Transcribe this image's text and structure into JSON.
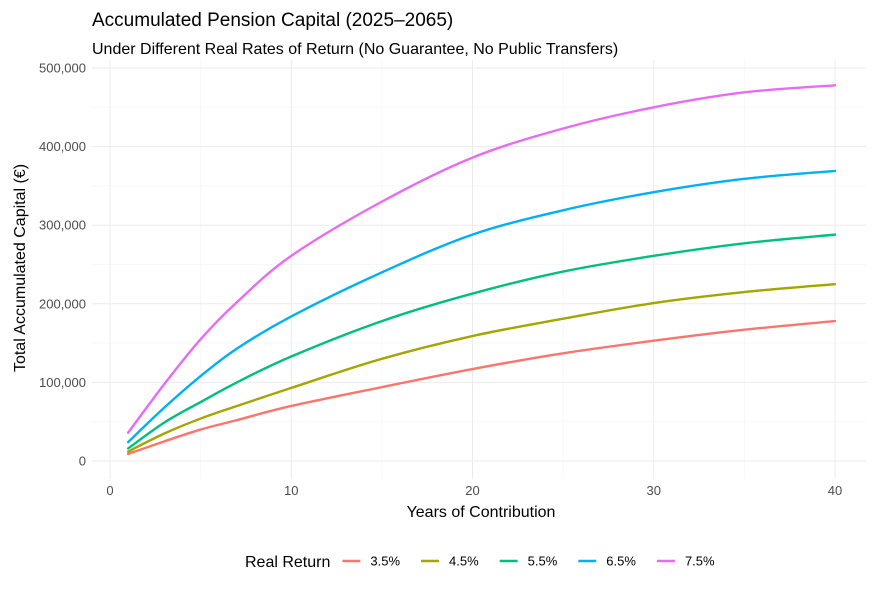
{
  "chart_data": {
    "type": "line",
    "title": "Accumulated Pension Capital (2025–2065)",
    "subtitle": "Under Different Real Rates of Return (No Guarantee, No Public Transfers)",
    "xlabel": "Years of Contribution",
    "ylabel": "Total Accumulated Capital (€)",
    "xlim": [
      0,
      40
    ],
    "ylim": [
      0,
      500000
    ],
    "x_ticks": [
      0,
      10,
      20,
      30,
      40
    ],
    "x_tick_labels": [
      "0",
      "10",
      "20",
      "30",
      "40"
    ],
    "y_ticks": [
      0,
      100000,
      200000,
      300000,
      400000,
      500000
    ],
    "y_tick_labels": [
      "0",
      "100,000",
      "200,000",
      "300,000",
      "400,000",
      "500,000"
    ],
    "grid": true,
    "legend_position": "bottom",
    "legend_title": "Real Return",
    "x": [
      1,
      3,
      5,
      7,
      10,
      15,
      20,
      25,
      30,
      35,
      40
    ],
    "series": [
      {
        "name": "3.5%",
        "color": "#F8766D",
        "values": [
          9000,
          25000,
          40000,
          52000,
          70000,
          94000,
          117000,
          137000,
          153000,
          167000,
          178000
        ]
      },
      {
        "name": "4.5%",
        "color": "#A3A500",
        "values": [
          12000,
          35000,
          54000,
          70000,
          93000,
          130000,
          159000,
          181000,
          201000,
          215000,
          225000
        ]
      },
      {
        "name": "5.5%",
        "color": "#00BF7D",
        "values": [
          16000,
          49000,
          75000,
          100000,
          133000,
          178000,
          213000,
          241000,
          261000,
          277000,
          288000
        ]
      },
      {
        "name": "6.5%",
        "color": "#00B0F6",
        "values": [
          24000,
          68000,
          108000,
          143000,
          184000,
          240000,
          288000,
          319000,
          342000,
          359000,
          369000
        ]
      },
      {
        "name": "7.5%",
        "color": "#E76BF3",
        "values": [
          36000,
          98000,
          155000,
          202000,
          261000,
          330000,
          386000,
          423000,
          450000,
          469000,
          478000
        ]
      }
    ]
  }
}
